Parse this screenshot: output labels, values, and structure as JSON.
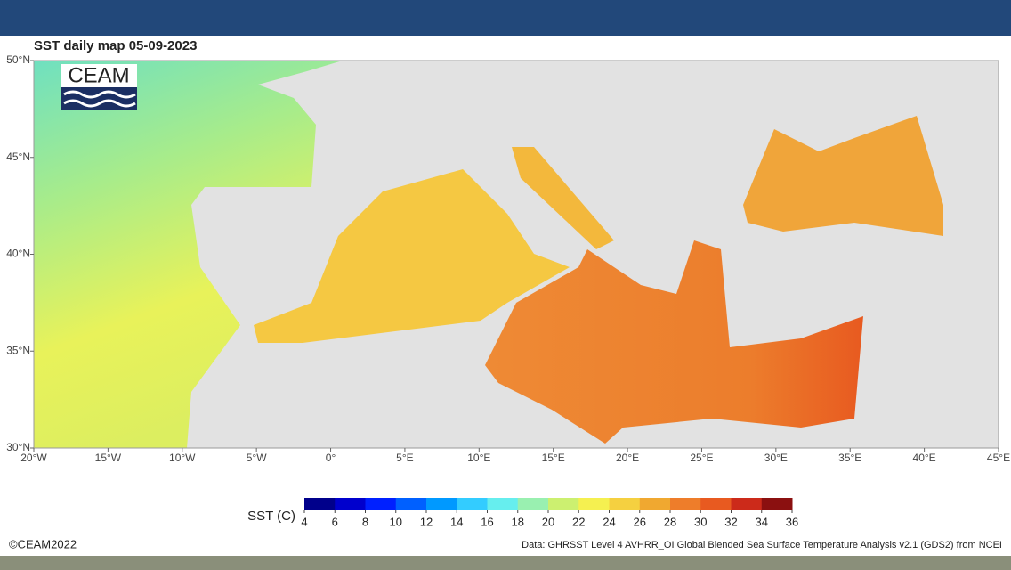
{
  "map": {
    "title": "SST daily map 05-09-2023",
    "logo": "CEAM",
    "lon_range": [
      -20,
      45
    ],
    "lat_range": [
      30,
      50
    ],
    "lon_ticks": [
      {
        "value": -20,
        "label": "20°W"
      },
      {
        "value": -15,
        "label": "15°W"
      },
      {
        "value": -10,
        "label": "10°W"
      },
      {
        "value": -5,
        "label": "5°W"
      },
      {
        "value": 0,
        "label": "0°"
      },
      {
        "value": 5,
        "label": "5°E"
      },
      {
        "value": 10,
        "label": "10°E"
      },
      {
        "value": 15,
        "label": "15°E"
      },
      {
        "value": 20,
        "label": "20°E"
      },
      {
        "value": 25,
        "label": "25°E"
      },
      {
        "value": 30,
        "label": "30°E"
      },
      {
        "value": 35,
        "label": "35°E"
      },
      {
        "value": 40,
        "label": "40°E"
      },
      {
        "value": 45,
        "label": "45°E"
      }
    ],
    "lat_ticks": [
      {
        "value": 30,
        "label": "30°N"
      },
      {
        "value": 35,
        "label": "35°N"
      },
      {
        "value": 40,
        "label": "40°N"
      },
      {
        "value": 45,
        "label": "45°N"
      },
      {
        "value": 50,
        "label": "50°N"
      }
    ]
  },
  "colorbar": {
    "label": "SST (C)",
    "range": [
      4,
      36
    ],
    "ticks": [
      4,
      6,
      8,
      10,
      12,
      14,
      16,
      18,
      20,
      22,
      24,
      26,
      28,
      30,
      32,
      34,
      36
    ],
    "colors": [
      "#00008b",
      "#0000cd",
      "#0020ff",
      "#0060ff",
      "#0099ff",
      "#33ccff",
      "#66eeee",
      "#99f0b0",
      "#ccf070",
      "#f5f050",
      "#f5d040",
      "#f0a830",
      "#ee7d2a",
      "#e85a20",
      "#cc2a1a",
      "#8b1010"
    ]
  },
  "footer": {
    "copyright": "©CEAM2022",
    "source": "Data: GHRSST Level 4 AVHRR_OI Global Blended Sea Surface Temperature Analysis v2.1 (GDS2) from NCEI"
  }
}
